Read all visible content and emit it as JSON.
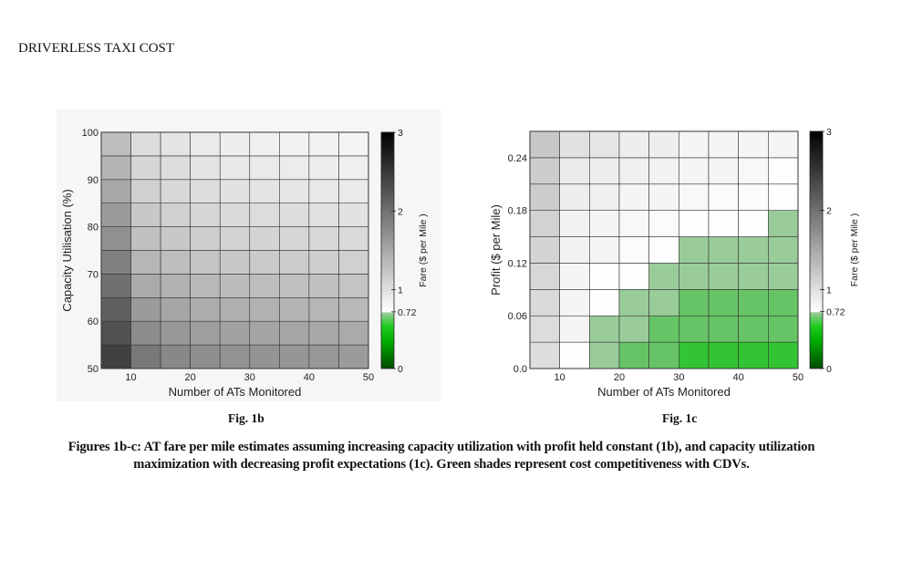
{
  "header": {
    "title": "DRIVERLESS TAXI COST"
  },
  "figures": {
    "fig1b_label": "Fig. 1b",
    "fig1c_label": "Fig. 1c",
    "caption_line1": "Figures 1b-c: AT fare per mile estimates assuming increasing capacity utilization with profit held constant (1b), and capacity utilization",
    "caption_line2": "maximization with decreasing profit expectations (1c). Green shades represent cost competitiveness with CDVs."
  },
  "chart_data": [
    {
      "type": "heatmap",
      "id": "fig1b",
      "xlabel": "Number of ATs Monitored",
      "ylabel": "Capacity Utilisation (%)",
      "colorbar_label": "Fare ($ per Mile )",
      "x_bin_edges": [
        5,
        10,
        15,
        20,
        25,
        30,
        35,
        40,
        45,
        50
      ],
      "y_bin_edges": [
        50,
        55,
        60,
        65,
        70,
        75,
        80,
        85,
        90,
        95,
        100
      ],
      "xlim": [
        5,
        50
      ],
      "ylim": [
        50,
        100
      ],
      "xticks": [
        10,
        20,
        30,
        40,
        50
      ],
      "yticks": [
        50,
        60,
        70,
        80,
        90,
        100
      ],
      "yticklabels": [
        "50",
        "60",
        "70",
        "80",
        "90",
        "100"
      ],
      "colorbar_range": [
        0,
        3
      ],
      "colorbar_ticks": [
        0,
        0.72,
        1,
        2,
        3
      ],
      "colorbar_ticklabels": [
        "0",
        "0.72",
        "1",
        "2",
        "3"
      ],
      "threshold": 0.72,
      "values_bottom_to_top": [
        [
          2.43,
          1.93,
          1.78,
          1.73,
          1.69,
          1.68,
          1.66,
          1.64,
          1.61
        ],
        [
          2.28,
          1.75,
          1.64,
          1.59,
          1.55,
          1.53,
          1.52,
          1.5,
          1.48
        ],
        [
          2.14,
          1.61,
          1.52,
          1.46,
          1.43,
          1.41,
          1.39,
          1.37,
          1.35
        ],
        [
          2.0,
          1.48,
          1.41,
          1.35,
          1.32,
          1.3,
          1.28,
          1.27,
          1.25
        ],
        [
          1.86,
          1.37,
          1.3,
          1.25,
          1.21,
          1.19,
          1.18,
          1.16,
          1.14
        ],
        [
          1.71,
          1.28,
          1.21,
          1.16,
          1.12,
          1.1,
          1.09,
          1.07,
          1.05
        ],
        [
          1.61,
          1.21,
          1.14,
          1.09,
          1.05,
          1.03,
          1.02,
          1.0,
          0.98
        ],
        [
          1.5,
          1.14,
          1.07,
          1.02,
          0.98,
          0.96,
          0.94,
          0.93,
          0.91
        ],
        [
          1.39,
          1.09,
          1.02,
          0.96,
          0.93,
          0.91,
          0.89,
          0.87,
          0.85
        ],
        [
          1.3,
          1.03,
          0.96,
          0.91,
          0.87,
          0.85,
          0.84,
          0.84,
          0.82
        ]
      ]
    },
    {
      "type": "heatmap",
      "id": "fig1c",
      "xlabel": "Number of ATs Monitored",
      "ylabel": "Profit ($ per Mile)",
      "colorbar_label": "Fare ($ per Mile )",
      "x_bin_edges": [
        5,
        10,
        15,
        20,
        25,
        30,
        35,
        40,
        45,
        50
      ],
      "y_bin_edges": [
        0,
        0.03,
        0.06,
        0.09,
        0.12,
        0.15,
        0.18,
        0.21,
        0.24,
        0.27
      ],
      "xlim": [
        5,
        50
      ],
      "ylim": [
        0,
        0.27
      ],
      "xticks": [
        10,
        20,
        30,
        40,
        50
      ],
      "yticks": [
        0,
        0.06,
        0.12,
        0.18,
        0.24
      ],
      "yticklabels": [
        "0.0",
        "0.06",
        "0.12",
        "0.18",
        "0.24"
      ],
      "colorbar_range": [
        0,
        3
      ],
      "colorbar_ticks": [
        0,
        0.72,
        1,
        2,
        3
      ],
      "colorbar_ticklabels": [
        "0",
        "0.72",
        "1",
        "2",
        "3"
      ],
      "threshold": 0.72,
      "values_bottom_to_top": [
        [
          1.02,
          0.73,
          0.7,
          0.6,
          0.6,
          0.5,
          0.5,
          0.5,
          0.5
        ],
        [
          1.03,
          0.81,
          0.7,
          0.7,
          0.6,
          0.6,
          0.6,
          0.6,
          0.6
        ],
        [
          1.05,
          0.81,
          0.73,
          0.7,
          0.7,
          0.6,
          0.6,
          0.6,
          0.6
        ],
        [
          1.08,
          0.81,
          0.73,
          0.73,
          0.7,
          0.7,
          0.7,
          0.7,
          0.7
        ],
        [
          1.1,
          0.84,
          0.81,
          0.76,
          0.73,
          0.7,
          0.7,
          0.7,
          0.7
        ],
        [
          1.12,
          0.84,
          0.81,
          0.78,
          0.76,
          0.73,
          0.73,
          0.73,
          0.7
        ],
        [
          1.17,
          0.87,
          0.85,
          0.81,
          0.81,
          0.78,
          0.76,
          0.75,
          0.73
        ],
        [
          1.17,
          0.9,
          0.87,
          0.85,
          0.84,
          0.81,
          0.81,
          0.78,
          0.73
        ],
        [
          1.21,
          0.99,
          0.94,
          0.87,
          0.87,
          0.81,
          0.81,
          0.81,
          0.81
        ]
      ]
    }
  ]
}
